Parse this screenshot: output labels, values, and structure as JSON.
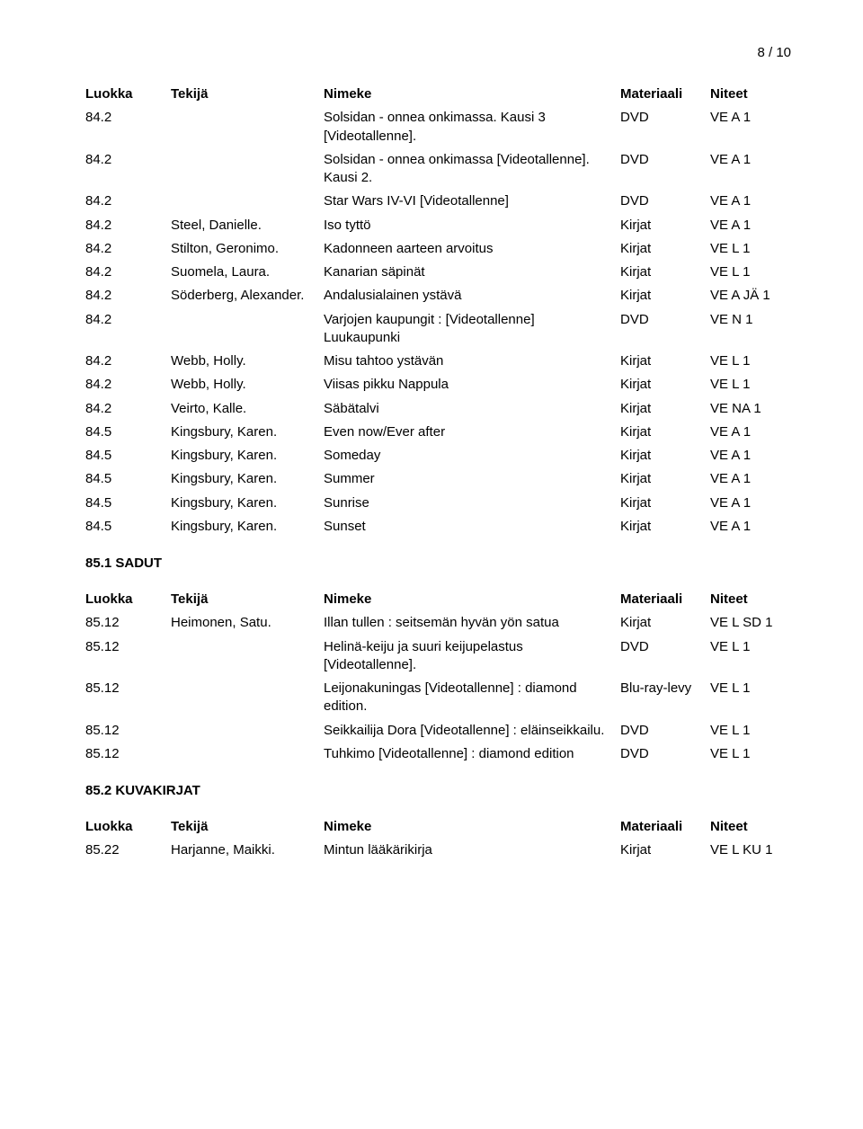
{
  "page_number": "8 / 10",
  "columns": {
    "luokka": "Luokka",
    "tekija": "Tekijä",
    "nimeke": "Nimeke",
    "materiaali": "Materiaali",
    "niteet": "Niteet"
  },
  "table1": [
    {
      "luokka": "84.2",
      "tekija": "",
      "nimeke": "Solsidan - onnea onkimassa. Kausi 3 [Videotallenne].",
      "materiaali": "DVD",
      "niteet": "VE A 1"
    },
    {
      "luokka": "84.2",
      "tekija": "",
      "nimeke": "Solsidan - onnea onkimassa [Videotallenne]. Kausi 2.",
      "materiaali": "DVD",
      "niteet": "VE A 1"
    },
    {
      "luokka": "84.2",
      "tekija": "",
      "nimeke": "Star Wars IV-VI [Videotallenne]",
      "materiaali": "DVD",
      "niteet": "VE A 1"
    },
    {
      "luokka": "84.2",
      "tekija": "Steel, Danielle.",
      "nimeke": "Iso tyttö",
      "materiaali": "Kirjat",
      "niteet": "VE A 1"
    },
    {
      "luokka": "84.2",
      "tekija": "Stilton, Geronimo.",
      "nimeke": "Kadonneen aarteen arvoitus",
      "materiaali": "Kirjat",
      "niteet": "VE L 1"
    },
    {
      "luokka": "84.2",
      "tekija": "Suomela, Laura.",
      "nimeke": "Kanarian säpinät",
      "materiaali": "Kirjat",
      "niteet": "VE L 1"
    },
    {
      "luokka": "84.2",
      "tekija": "Söderberg, Alexander.",
      "nimeke": "Andalusialainen ystävä",
      "materiaali": "Kirjat",
      "niteet": "VE A JÄ 1"
    },
    {
      "luokka": "84.2",
      "tekija": "",
      "nimeke": "Varjojen kaupungit : [Videotallenne] Luukaupunki",
      "materiaali": "DVD",
      "niteet": "VE N 1"
    },
    {
      "luokka": "84.2",
      "tekija": "Webb, Holly.",
      "nimeke": "Misu tahtoo ystävän",
      "materiaali": "Kirjat",
      "niteet": "VE L 1"
    },
    {
      "luokka": "84.2",
      "tekija": "Webb, Holly.",
      "nimeke": "Viisas pikku Nappula",
      "materiaali": "Kirjat",
      "niteet": "VE L 1"
    },
    {
      "luokka": "84.2",
      "tekija": "Veirto, Kalle.",
      "nimeke": "Säbätalvi",
      "materiaali": "Kirjat",
      "niteet": "VE NA 1"
    },
    {
      "luokka": "84.5",
      "tekija": "Kingsbury, Karen.",
      "nimeke": "Even now/Ever after",
      "materiaali": "Kirjat",
      "niteet": "VE A 1"
    },
    {
      "luokka": "84.5",
      "tekija": "Kingsbury, Karen.",
      "nimeke": "Someday",
      "materiaali": "Kirjat",
      "niteet": "VE A 1"
    },
    {
      "luokka": "84.5",
      "tekija": "Kingsbury, Karen.",
      "nimeke": "Summer",
      "materiaali": "Kirjat",
      "niteet": "VE A 1"
    },
    {
      "luokka": "84.5",
      "tekija": "Kingsbury, Karen.",
      "nimeke": "Sunrise",
      "materiaali": "Kirjat",
      "niteet": "VE A 1"
    },
    {
      "luokka": "84.5",
      "tekija": "Kingsbury, Karen.",
      "nimeke": "Sunset",
      "materiaali": "Kirjat",
      "niteet": "VE A 1"
    }
  ],
  "section1": {
    "heading": "85.1 SADUT"
  },
  "table2": [
    {
      "luokka": "85.12",
      "tekija": "Heimonen, Satu.",
      "nimeke": "Illan tullen : seitsemän hyvän yön satua",
      "materiaali": "Kirjat",
      "niteet": "VE L SD 1"
    },
    {
      "luokka": "85.12",
      "tekija": "",
      "nimeke": "Helinä-keiju ja suuri keijupelastus [Videotallenne].",
      "materiaali": "DVD",
      "niteet": "VE L 1"
    },
    {
      "luokka": "85.12",
      "tekija": "",
      "nimeke": "Leijonakuningas [Videotallenne] : diamond edition.",
      "materiaali": "Blu-ray-levy",
      "niteet": "VE L 1"
    },
    {
      "luokka": "85.12",
      "tekija": "",
      "nimeke": "Seikkailija Dora [Videotallenne] : eläinseikkailu.",
      "materiaali": "DVD",
      "niteet": "VE L 1"
    },
    {
      "luokka": "85.12",
      "tekija": "",
      "nimeke": "Tuhkimo [Videotallenne] : diamond edition",
      "materiaali": "DVD",
      "niteet": "VE L 1"
    }
  ],
  "section2": {
    "heading": "85.2 KUVAKIRJAT"
  },
  "table3": [
    {
      "luokka": "85.22",
      "tekija": "Harjanne, Maikki.",
      "nimeke": "Mintun lääkärikirja",
      "materiaali": "Kirjat",
      "niteet": "VE L KU 1"
    }
  ]
}
